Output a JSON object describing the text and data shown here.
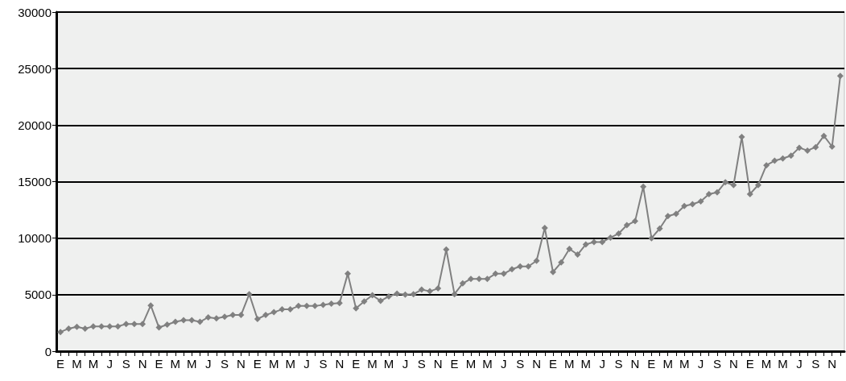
{
  "chart_data": {
    "type": "line",
    "categories": [
      "E",
      null,
      "M",
      null,
      "M",
      null,
      "J",
      null,
      "S",
      null,
      "N",
      null,
      "E",
      null,
      "M",
      null,
      "M",
      null,
      "J",
      null,
      "S",
      null,
      "N",
      null,
      "E",
      null,
      "M",
      null,
      "M",
      null,
      "J",
      null,
      "S",
      null,
      "N",
      null,
      "E",
      null,
      "M",
      null,
      "M",
      null,
      "J",
      null,
      "S",
      null,
      "N",
      null,
      "E",
      null,
      "M",
      null,
      "M",
      null,
      "J",
      null,
      "S",
      null,
      "N",
      null,
      "E",
      null,
      "M",
      null,
      "M",
      null,
      "J",
      null,
      "S",
      null,
      "N",
      null,
      "E",
      null,
      "M",
      null,
      "M",
      null,
      "J",
      null,
      "S",
      null,
      "N",
      null,
      "E",
      null,
      "M",
      null,
      "M",
      null,
      "J",
      null,
      "S",
      null,
      "N",
      null
    ],
    "series": [
      {
        "color": "#808080",
        "values": [
          1700,
          2000,
          2150,
          2000,
          2200,
          2200,
          2200,
          2200,
          2400,
          2400,
          2400,
          4050,
          2100,
          2350,
          2600,
          2750,
          2750,
          2600,
          3000,
          2900,
          3050,
          3200,
          3200,
          5050,
          2850,
          3200,
          3450,
          3700,
          3700,
          4000,
          4000,
          4000,
          4100,
          4200,
          4250,
          6850,
          3800,
          4400,
          4950,
          4450,
          4850,
          5100,
          5000,
          5050,
          5450,
          5300,
          5550,
          9000,
          5050,
          6000,
          6400,
          6400,
          6400,
          6850,
          6850,
          7250,
          7500,
          7500,
          8000,
          10900,
          7000,
          7850,
          9050,
          8550,
          9450,
          9650,
          9650,
          10050,
          10400,
          11150,
          11500,
          14550,
          10000,
          10850,
          11950,
          12150,
          12850,
          13000,
          13250,
          13900,
          14050,
          14950,
          14700,
          18950,
          13900,
          14700,
          16450,
          16850,
          17050,
          17300,
          18000,
          17750,
          18050,
          19050,
          18100,
          24350
        ]
      }
    ],
    "ylim": [
      0,
      30000
    ],
    "yticks": [
      0,
      5000,
      10000,
      15000,
      20000,
      25000,
      30000
    ],
    "grid": "y",
    "marker": "diamond",
    "line_style": "solid"
  }
}
